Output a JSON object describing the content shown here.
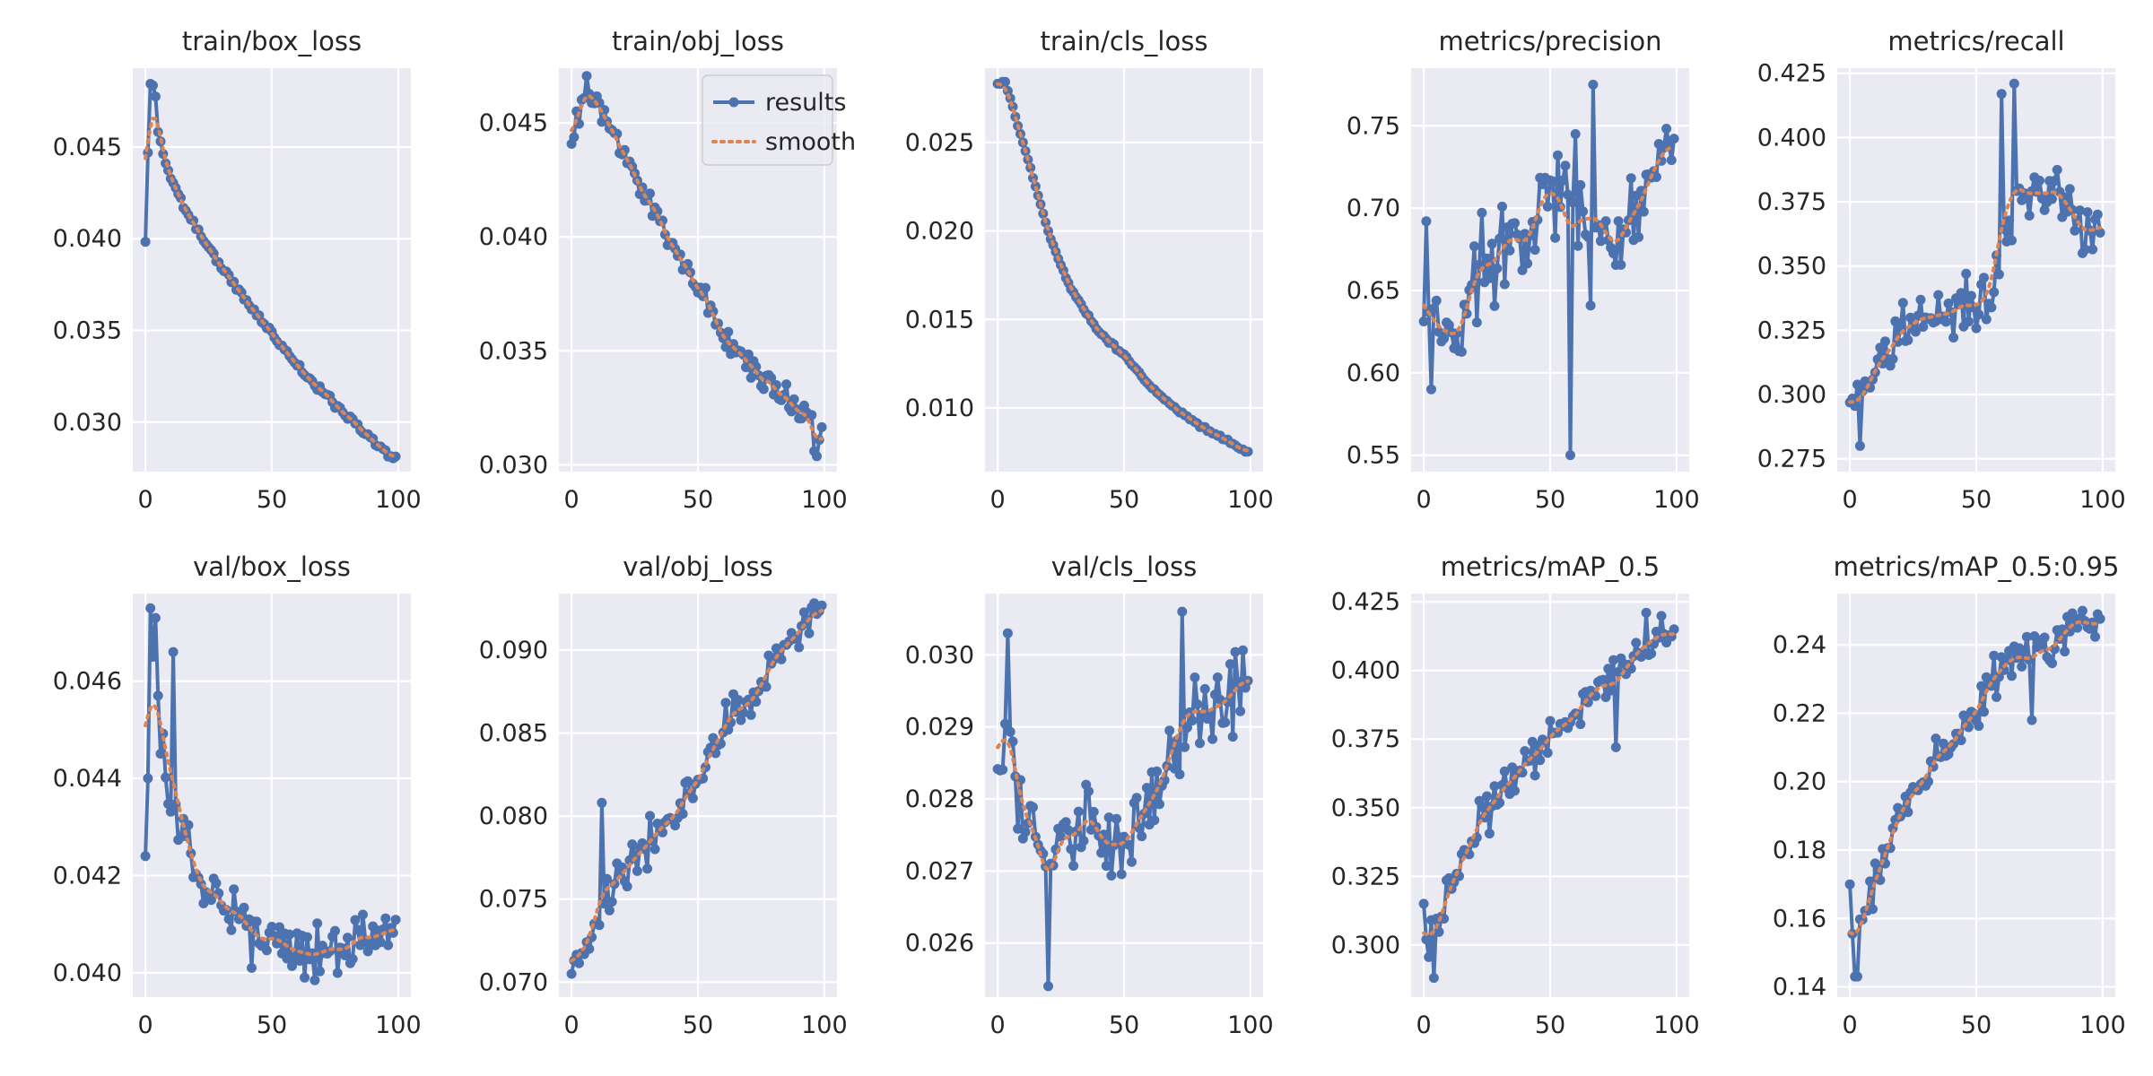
{
  "colors": {
    "background": "#ffffff",
    "axes_bg": "#eaeaf2",
    "grid": "#ffffff",
    "results": "#4c72b0",
    "smooth": "#dd8452",
    "text": "#262626"
  },
  "legend": {
    "results_label": "results",
    "smooth_label": "smooth",
    "location": "top-right of train/obj_loss"
  },
  "chart_data": [
    {
      "type": "line",
      "title": "train/box_loss",
      "xlim": [
        -5,
        105
      ],
      "ylim": [
        0.0273,
        0.0493
      ],
      "xticks": [
        0,
        50,
        100
      ],
      "yticks": [
        0.03,
        0.035,
        0.04,
        0.045
      ],
      "ytick_labels": [
        "0.030",
        "0.035",
        "0.040",
        "0.045"
      ],
      "x_range": [
        0,
        99
      ],
      "smooth_sigma": 2,
      "anchors": [
        [
          0,
          0.0398
        ],
        [
          1,
          0.0446
        ],
        [
          2,
          0.0485
        ],
        [
          3,
          0.0483
        ],
        [
          4,
          0.0477
        ],
        [
          5,
          0.046
        ],
        [
          8,
          0.044
        ],
        [
          15,
          0.0418
        ],
        [
          25,
          0.0395
        ],
        [
          35,
          0.0375
        ],
        [
          45,
          0.0357
        ],
        [
          55,
          0.034
        ],
        [
          65,
          0.0323
        ],
        [
          75,
          0.031
        ],
        [
          85,
          0.0297
        ],
        [
          95,
          0.0283
        ],
        [
          99,
          0.028
        ]
      ],
      "noise": 0.0002,
      "seed": 11
    },
    {
      "type": "line",
      "title": "train/obj_loss",
      "xlim": [
        -5,
        105
      ],
      "ylim": [
        0.0297,
        0.0474
      ],
      "xticks": [
        0,
        50,
        100
      ],
      "yticks": [
        0.03,
        0.035,
        0.04,
        0.045
      ],
      "ytick_labels": [
        "0.030",
        "0.035",
        "0.040",
        "0.045"
      ],
      "x_range": [
        0,
        99
      ],
      "smooth_sigma": 2,
      "anchors": [
        [
          0,
          0.0445
        ],
        [
          3,
          0.0453
        ],
        [
          6,
          0.0467
        ],
        [
          10,
          0.0455
        ],
        [
          20,
          0.044
        ],
        [
          30,
          0.0415
        ],
        [
          40,
          0.0398
        ],
        [
          50,
          0.0378
        ],
        [
          60,
          0.0357
        ],
        [
          70,
          0.0345
        ],
        [
          80,
          0.0333
        ],
        [
          90,
          0.0325
        ],
        [
          95,
          0.0322
        ],
        [
          97,
          0.0301
        ],
        [
          99,
          0.0316
        ]
      ],
      "noise": 0.0006,
      "seed": 23
    },
    {
      "type": "line",
      "title": "train/cls_loss",
      "xlim": [
        -5,
        105
      ],
      "ylim": [
        0.0064,
        0.0292
      ],
      "xticks": [
        0,
        50,
        100
      ],
      "yticks": [
        0.01,
        0.015,
        0.02,
        0.025
      ],
      "ytick_labels": [
        "0.010",
        "0.015",
        "0.020",
        "0.025"
      ],
      "x_range": [
        0,
        99
      ],
      "smooth_sigma": 2,
      "anchors": [
        [
          0,
          0.0283
        ],
        [
          3,
          0.0284
        ],
        [
          5,
          0.0275
        ],
        [
          10,
          0.025
        ],
        [
          15,
          0.0225
        ],
        [
          20,
          0.02
        ],
        [
          25,
          0.018
        ],
        [
          30,
          0.0165
        ],
        [
          40,
          0.0143
        ],
        [
          50,
          0.013
        ],
        [
          60,
          0.0113
        ],
        [
          70,
          0.01
        ],
        [
          80,
          0.009
        ],
        [
          90,
          0.0082
        ],
        [
          99,
          0.0075
        ]
      ],
      "noise": 0.0001,
      "seed": 5
    },
    {
      "type": "line",
      "title": "metrics/precision",
      "xlim": [
        -5,
        105
      ],
      "ylim": [
        0.54,
        0.785
      ],
      "xticks": [
        0,
        50,
        100
      ],
      "yticks": [
        0.55,
        0.6,
        0.65,
        0.7,
        0.75
      ],
      "ytick_labels": [
        "0.55",
        "0.60",
        "0.65",
        "0.70",
        "0.75"
      ],
      "x_range": [
        0,
        99
      ],
      "smooth_sigma": 3,
      "anchors": [
        [
          0,
          0.63
        ],
        [
          15,
          0.62
        ],
        [
          20,
          0.66
        ],
        [
          30,
          0.68
        ],
        [
          45,
          0.7
        ],
        [
          55,
          0.71
        ],
        [
          65,
          0.68
        ],
        [
          75,
          0.68
        ],
        [
          85,
          0.71
        ],
        [
          99,
          0.75
        ]
      ],
      "noise": 0.03,
      "seed": 37,
      "overrides": [
        [
          1,
          0.692
        ],
        [
          3,
          0.59
        ],
        [
          58,
          0.55
        ],
        [
          67,
          0.775
        ],
        [
          60,
          0.745
        ]
      ]
    },
    {
      "type": "line",
      "title": "metrics/recall",
      "xlim": [
        -5,
        105
      ],
      "ylim": [
        0.27,
        0.427
      ],
      "xticks": [
        0,
        50,
        100
      ],
      "yticks": [
        0.275,
        0.3,
        0.325,
        0.35,
        0.375,
        0.4,
        0.425
      ],
      "ytick_labels": [
        "0.275",
        "0.300",
        "0.325",
        "0.350",
        "0.375",
        "0.400",
        "0.425"
      ],
      "x_range": [
        0,
        99
      ],
      "smooth_sigma": 3,
      "anchors": [
        [
          0,
          0.291
        ],
        [
          5,
          0.305
        ],
        [
          15,
          0.32
        ],
        [
          30,
          0.33
        ],
        [
          45,
          0.332
        ],
        [
          55,
          0.34
        ],
        [
          62,
          0.36
        ],
        [
          70,
          0.38
        ],
        [
          80,
          0.378
        ],
        [
          90,
          0.37
        ],
        [
          99,
          0.365
        ]
      ],
      "noise": 0.012,
      "seed": 41,
      "overrides": [
        [
          4,
          0.28
        ],
        [
          60,
          0.417
        ],
        [
          65,
          0.421
        ]
      ]
    },
    {
      "type": "line",
      "title": "val/box_loss",
      "xlim": [
        -5,
        105
      ],
      "ylim": [
        0.0395,
        0.0478
      ],
      "xticks": [
        0,
        50,
        100
      ],
      "yticks": [
        0.04,
        0.042,
        0.044,
        0.046
      ],
      "ytick_labels": [
        "0.040",
        "0.042",
        "0.044",
        "0.046"
      ],
      "x_range": [
        0,
        99
      ],
      "smooth_sigma": 3,
      "anchors": [
        [
          0,
          0.045
        ],
        [
          5,
          0.045
        ],
        [
          10,
          0.0435
        ],
        [
          15,
          0.0428
        ],
        [
          20,
          0.042
        ],
        [
          30,
          0.0415
        ],
        [
          40,
          0.0413
        ],
        [
          45,
          0.0408
        ],
        [
          50,
          0.0407
        ],
        [
          60,
          0.0405
        ],
        [
          70,
          0.0405
        ],
        [
          80,
          0.0406
        ],
        [
          90,
          0.0408
        ],
        [
          99,
          0.0407
        ]
      ],
      "noise": 0.0005,
      "seed": 53,
      "overrides": [
        [
          0,
          0.0424
        ],
        [
          1,
          0.044
        ],
        [
          2,
          0.0475
        ],
        [
          3,
          0.0465
        ],
        [
          4,
          0.0473
        ],
        [
          5,
          0.0457
        ],
        [
          11,
          0.0466
        ],
        [
          42,
          0.0401
        ],
        [
          63,
          0.0399
        ]
      ]
    },
    {
      "type": "line",
      "title": "val/obj_loss",
      "xlim": [
        -5,
        105
      ],
      "ylim": [
        0.0691,
        0.0934
      ],
      "xticks": [
        0,
        50,
        100
      ],
      "yticks": [
        0.07,
        0.075,
        0.08,
        0.085,
        0.09
      ],
      "ytick_labels": [
        "0.070",
        "0.075",
        "0.080",
        "0.085",
        "0.090"
      ],
      "x_range": [
        0,
        99
      ],
      "smooth_sigma": 3,
      "anchors": [
        [
          0,
          0.071
        ],
        [
          10,
          0.0735
        ],
        [
          20,
          0.0765
        ],
        [
          30,
          0.0785
        ],
        [
          40,
          0.08
        ],
        [
          50,
          0.0825
        ],
        [
          60,
          0.085
        ],
        [
          70,
          0.087
        ],
        [
          80,
          0.0895
        ],
        [
          90,
          0.091
        ],
        [
          99,
          0.092
        ]
      ],
      "noise": 0.0015,
      "seed": 67,
      "overrides": [
        [
          0,
          0.0705
        ],
        [
          12,
          0.0808
        ]
      ]
    },
    {
      "type": "line",
      "title": "val/cls_loss",
      "xlim": [
        -5,
        105
      ],
      "ylim": [
        0.02525,
        0.03085
      ],
      "xticks": [
        0,
        50,
        100
      ],
      "yticks": [
        0.026,
        0.027,
        0.028,
        0.029,
        0.03
      ],
      "ytick_labels": [
        "0.026",
        "0.027",
        "0.028",
        "0.029",
        "0.030"
      ],
      "x_range": [
        0,
        99
      ],
      "smooth_sigma": 3,
      "anchors": [
        [
          0,
          0.0284
        ],
        [
          4,
          0.0288
        ],
        [
          10,
          0.028
        ],
        [
          15,
          0.0275
        ],
        [
          20,
          0.0272
        ],
        [
          30,
          0.0275
        ],
        [
          40,
          0.0275
        ],
        [
          50,
          0.0273
        ],
        [
          60,
          0.0278
        ],
        [
          70,
          0.0285
        ],
        [
          80,
          0.0293
        ],
        [
          90,
          0.0293
        ],
        [
          99,
          0.0295
        ]
      ],
      "noise": 0.0006,
      "seed": 71,
      "overrides": [
        [
          4,
          0.0303
        ],
        [
          20,
          0.0254
        ],
        [
          73,
          0.0306
        ]
      ]
    },
    {
      "type": "line",
      "title": "metrics/mAP_0.5",
      "xlim": [
        -5,
        105
      ],
      "ylim": [
        0.281,
        0.428
      ],
      "xticks": [
        0,
        50,
        100
      ],
      "yticks": [
        0.3,
        0.325,
        0.35,
        0.375,
        0.4,
        0.425
      ],
      "ytick_labels": [
        "0.300",
        "0.325",
        "0.350",
        "0.375",
        "0.400",
        "0.425"
      ],
      "x_range": [
        0,
        99
      ],
      "smooth_sigma": 3,
      "anchors": [
        [
          0,
          0.3
        ],
        [
          5,
          0.305
        ],
        [
          10,
          0.32
        ],
        [
          20,
          0.34
        ],
        [
          30,
          0.355
        ],
        [
          40,
          0.365
        ],
        [
          50,
          0.375
        ],
        [
          60,
          0.385
        ],
        [
          70,
          0.395
        ],
        [
          80,
          0.4
        ],
        [
          90,
          0.412
        ],
        [
          99,
          0.418
        ]
      ],
      "noise": 0.008,
      "seed": 83,
      "overrides": [
        [
          0,
          0.315
        ],
        [
          4,
          0.288
        ],
        [
          76,
          0.372
        ],
        [
          88,
          0.421
        ],
        [
          99,
          0.415
        ]
      ]
    },
    {
      "type": "line",
      "title": "metrics/mAP_0.5:0.95",
      "xlim": [
        -5,
        105
      ],
      "ylim": [
        0.137,
        0.255
      ],
      "xticks": [
        0,
        50,
        100
      ],
      "yticks": [
        0.14,
        0.16,
        0.18,
        0.2,
        0.22,
        0.24
      ],
      "ytick_labels": [
        "0.14",
        "0.16",
        "0.18",
        "0.20",
        "0.22",
        "0.24"
      ],
      "x_range": [
        0,
        99
      ],
      "smooth_sigma": 3,
      "anchors": [
        [
          0,
          0.156
        ],
        [
          5,
          0.158
        ],
        [
          10,
          0.172
        ],
        [
          20,
          0.19
        ],
        [
          30,
          0.202
        ],
        [
          40,
          0.212
        ],
        [
          50,
          0.222
        ],
        [
          60,
          0.232
        ],
        [
          70,
          0.238
        ],
        [
          80,
          0.24
        ],
        [
          90,
          0.245
        ],
        [
          99,
          0.247
        ]
      ],
      "noise": 0.006,
      "seed": 97,
      "overrides": [
        [
          0,
          0.17
        ],
        [
          2,
          0.143
        ],
        [
          3,
          0.143
        ],
        [
          72,
          0.218
        ],
        [
          92,
          0.25
        ]
      ]
    }
  ]
}
